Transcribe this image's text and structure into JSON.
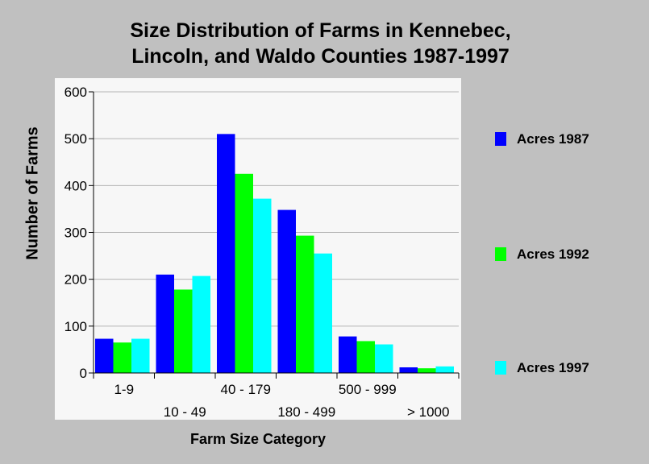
{
  "chart_data": {
    "type": "bar",
    "title_lines": [
      "Size Distribution of Farms in Kennebec,",
      "Lincoln, and Waldo Counties 1987-1997"
    ],
    "xlabel": "Farm Size Category",
    "ylabel": "Number of Farms",
    "categories": [
      "1-9",
      "10 - 49",
      "40 - 179",
      "180 - 499",
      "500 - 999",
      "> 1000"
    ],
    "series": [
      {
        "name": "Acres 1987",
        "color": "#0000ff",
        "values": [
          73,
          210,
          510,
          348,
          78,
          12
        ]
      },
      {
        "name": "Acres 1992",
        "color": "#00ff00",
        "values": [
          65,
          178,
          425,
          293,
          68,
          10
        ]
      },
      {
        "name": "Acres 1997",
        "color": "#00ffff",
        "values": [
          73,
          207,
          372,
          255,
          61,
          14
        ]
      }
    ],
    "ylim": [
      0,
      600
    ],
    "yticks": [
      "0",
      "100",
      "200",
      "300",
      "400",
      "500",
      "600"
    ],
    "grid": true,
    "legend_position": "right"
  }
}
